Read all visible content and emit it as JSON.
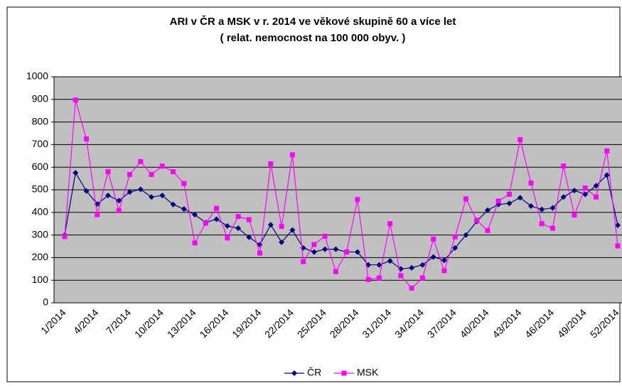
{
  "chart_data": {
    "type": "line",
    "title": "ARI v ČR a MSK v r. 2014 ve věkové skupině 60 a více let",
    "subtitle": "( relat. nemocnost na 100 000 obyv. )",
    "categories": [
      "1/2014",
      null,
      null,
      "4/2014",
      null,
      null,
      "7/2014",
      null,
      null,
      "10/2014",
      null,
      null,
      "13/2014",
      null,
      null,
      "16/2014",
      null,
      null,
      "19/2014",
      null,
      null,
      "22/2014",
      null,
      null,
      "25/2014",
      null,
      null,
      "28/2014",
      null,
      null,
      "31/2014",
      null,
      null,
      "34/2014",
      null,
      null,
      "37/2014",
      null,
      null,
      "40/2014",
      null,
      null,
      "43/2014",
      null,
      null,
      "46/2014",
      null,
      null,
      "49/2014",
      null,
      null,
      "52/2014"
    ],
    "series": [
      {
        "name": "ČR",
        "color": "#000080",
        "marker": "diamond",
        "values": [
          300,
          575,
          495,
          437,
          475,
          452,
          490,
          502,
          468,
          475,
          435,
          415,
          390,
          355,
          370,
          340,
          330,
          290,
          257,
          345,
          268,
          322,
          243,
          225,
          237,
          237,
          225,
          225,
          168,
          168,
          185,
          150,
          155,
          168,
          203,
          188,
          243,
          300,
          360,
          410,
          435,
          440,
          465,
          428,
          413,
          420,
          468,
          497,
          480,
          518,
          565,
          343
        ]
      },
      {
        "name": "MSK",
        "color": "#ff00ff",
        "marker": "square",
        "values": [
          293,
          897,
          725,
          390,
          580,
          408,
          568,
          625,
          568,
          605,
          580,
          528,
          265,
          352,
          418,
          287,
          382,
          368,
          220,
          615,
          338,
          655,
          182,
          258,
          295,
          138,
          225,
          457,
          103,
          110,
          350,
          120,
          65,
          110,
          282,
          142,
          292,
          460,
          365,
          320,
          450,
          480,
          722,
          530,
          350,
          330,
          605,
          388,
          508,
          468,
          672,
          252
        ]
      }
    ],
    "ylim": [
      0,
      1000
    ],
    "yticks": [
      0,
      100,
      200,
      300,
      400,
      500,
      600,
      700,
      800,
      900,
      1000
    ],
    "grid": true,
    "plot_background": "#c0c0c0",
    "legend": "bottom"
  }
}
